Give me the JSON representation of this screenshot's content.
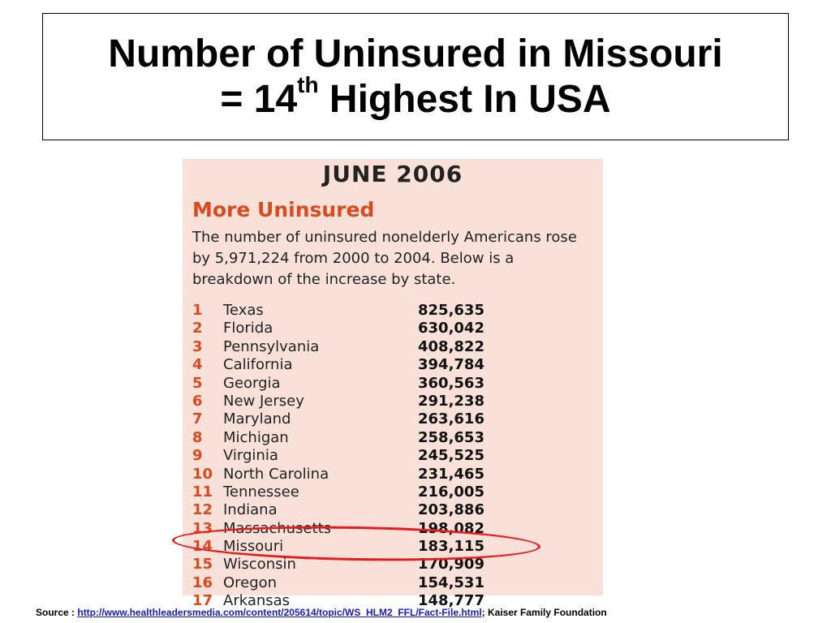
{
  "title": {
    "line1": "Number of Uninsured in Missouri",
    "line2_prefix": "= 14",
    "line2_sup": "th",
    "line2_suffix": "Highest In USA"
  },
  "clipping": {
    "date": "JUNE 2006",
    "headline": "More Uninsured",
    "description": "The number of uninsured nonelderly Americans rose by 5,971,224 from 2000 to 2004. Below is a breakdown of the increase by state.",
    "rows": [
      {
        "rank": "1",
        "state": "Texas",
        "value": "825,635"
      },
      {
        "rank": "2",
        "state": "Florida",
        "value": "630,042"
      },
      {
        "rank": "3",
        "state": "Pennsylvania",
        "value": "408,822"
      },
      {
        "rank": "4",
        "state": "California",
        "value": "394,784"
      },
      {
        "rank": "5",
        "state": "Georgia",
        "value": "360,563"
      },
      {
        "rank": "6",
        "state": "New Jersey",
        "value": "291,238"
      },
      {
        "rank": "7",
        "state": "Maryland",
        "value": "263,616"
      },
      {
        "rank": "8",
        "state": "Michigan",
        "value": "258,653"
      },
      {
        "rank": "9",
        "state": "Virginia",
        "value": "245,525"
      },
      {
        "rank": "10",
        "state": "North Carolina",
        "value": "231,465"
      },
      {
        "rank": "11",
        "state": "Tennessee",
        "value": "216,005"
      },
      {
        "rank": "12",
        "state": "Indiana",
        "value": "203,886"
      },
      {
        "rank": "13",
        "state": "Massachusetts",
        "value": "198,082"
      },
      {
        "rank": "14",
        "state": "Missouri",
        "value": "183,115"
      },
      {
        "rank": "15",
        "state": "Wisconsin",
        "value": "170,909"
      },
      {
        "rank": "16",
        "state": "Oregon",
        "value": "154,531"
      },
      {
        "rank": "17",
        "state": "Arkansas",
        "value": "148,777"
      }
    ],
    "highlight_color": "#e41c1c"
  },
  "source": {
    "label": "Source : ",
    "url": "http://www.healthleadersmedia.com/content/205614/topic/WS_HLM2_FFL/Fact-File.html",
    "suffix": "; Kaiser Family Foundation"
  }
}
